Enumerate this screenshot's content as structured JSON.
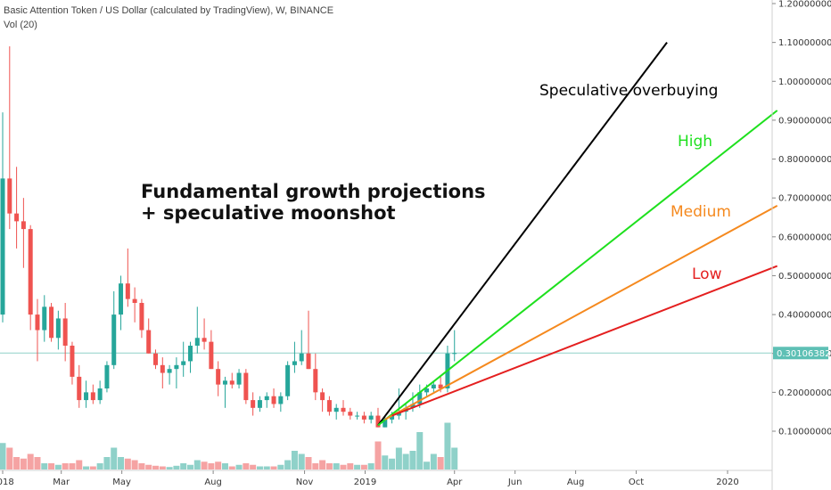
{
  "header": {
    "symbol_title": "Basic Attention Token / US Dollar (calculated by TradingView), W, BINANCE",
    "volume_label": "Vol (20)"
  },
  "colors": {
    "up": "#26a69a",
    "down": "#ef5350",
    "up_volume": "#8fd1c9",
    "down_volume": "#f5a3a3",
    "speculative": "#000000",
    "high": "#1ee01e",
    "medium": "#f5891e",
    "low": "#e41f1f",
    "price_line": "#8fd1c9"
  },
  "chart_data": {
    "type": "candlestick",
    "y_axis": {
      "min": 0.0,
      "max": 1.2,
      "ticks": [
        {
          "value": 1.2,
          "label": "1.20000000"
        },
        {
          "value": 1.1,
          "label": "1.10000000"
        },
        {
          "value": 1.0,
          "label": "1.00000000"
        },
        {
          "value": 0.9,
          "label": "0.90000000"
        },
        {
          "value": 0.8,
          "label": "0.80000000"
        },
        {
          "value": 0.7,
          "label": "0.70000000"
        },
        {
          "value": 0.6,
          "label": "0.60000000"
        },
        {
          "value": 0.5,
          "label": "0.50000000"
        },
        {
          "value": 0.4,
          "label": "0.40000000"
        },
        {
          "value": 0.3,
          "label": "0.30000000"
        },
        {
          "value": 0.2,
          "label": "0.20000000"
        },
        {
          "value": 0.1,
          "label": "0.10000000"
        }
      ]
    },
    "x_axis": {
      "start": "2018-01-01",
      "end": "2020-03-01",
      "ticks": [
        {
          "date": "2018-01-01",
          "label": "2018"
        },
        {
          "date": "2018-03-01",
          "label": "Mar"
        },
        {
          "date": "2018-05-01",
          "label": "May"
        },
        {
          "date": "2018-08-01",
          "label": "Aug"
        },
        {
          "date": "2018-11-01",
          "label": "Nov"
        },
        {
          "date": "2019-01-01",
          "label": "2019"
        },
        {
          "date": "2019-04-01",
          "label": "Apr"
        },
        {
          "date": "2019-06-01",
          "label": "Jun"
        },
        {
          "date": "2019-08-01",
          "label": "Aug"
        },
        {
          "date": "2019-10-01",
          "label": "Oct"
        },
        {
          "date": "2020-01-01",
          "label": "2020"
        }
      ]
    },
    "current_price": {
      "value": 0.30106382,
      "label": "0.30106382"
    },
    "series": [
      {
        "date": "2018-01-01",
        "o": 0.4,
        "h": 0.92,
        "l": 0.38,
        "c": 0.75,
        "v": 0.085
      },
      {
        "date": "2018-01-08",
        "o": 0.75,
        "h": 1.09,
        "l": 0.62,
        "c": 0.66,
        "v": 0.07
      },
      {
        "date": "2018-01-15",
        "o": 0.66,
        "h": 0.78,
        "l": 0.57,
        "c": 0.64,
        "v": 0.04
      },
      {
        "date": "2018-01-22",
        "o": 0.64,
        "h": 0.7,
        "l": 0.52,
        "c": 0.62,
        "v": 0.035
      },
      {
        "date": "2018-01-29",
        "o": 0.62,
        "h": 0.63,
        "l": 0.36,
        "c": 0.4,
        "v": 0.05
      },
      {
        "date": "2018-02-05",
        "o": 0.4,
        "h": 0.44,
        "l": 0.28,
        "c": 0.36,
        "v": 0.04
      },
      {
        "date": "2018-02-12",
        "o": 0.36,
        "h": 0.45,
        "l": 0.33,
        "c": 0.42,
        "v": 0.02
      },
      {
        "date": "2018-02-19",
        "o": 0.42,
        "h": 0.43,
        "l": 0.33,
        "c": 0.34,
        "v": 0.02
      },
      {
        "date": "2018-02-26",
        "o": 0.34,
        "h": 0.41,
        "l": 0.31,
        "c": 0.39,
        "v": 0.015
      },
      {
        "date": "2018-03-05",
        "o": 0.39,
        "h": 0.43,
        "l": 0.28,
        "c": 0.32,
        "v": 0.02
      },
      {
        "date": "2018-03-12",
        "o": 0.32,
        "h": 0.33,
        "l": 0.22,
        "c": 0.24,
        "v": 0.02
      },
      {
        "date": "2018-03-19",
        "o": 0.24,
        "h": 0.27,
        "l": 0.16,
        "c": 0.18,
        "v": 0.03
      },
      {
        "date": "2018-03-26",
        "o": 0.18,
        "h": 0.23,
        "l": 0.16,
        "c": 0.2,
        "v": 0.01
      },
      {
        "date": "2018-04-02",
        "o": 0.2,
        "h": 0.22,
        "l": 0.17,
        "c": 0.18,
        "v": 0.01
      },
      {
        "date": "2018-04-09",
        "o": 0.18,
        "h": 0.23,
        "l": 0.17,
        "c": 0.21,
        "v": 0.02
      },
      {
        "date": "2018-04-16",
        "o": 0.21,
        "h": 0.28,
        "l": 0.2,
        "c": 0.27,
        "v": 0.04
      },
      {
        "date": "2018-04-23",
        "o": 0.27,
        "h": 0.46,
        "l": 0.26,
        "c": 0.4,
        "v": 0.07
      },
      {
        "date": "2018-04-30",
        "o": 0.4,
        "h": 0.5,
        "l": 0.36,
        "c": 0.48,
        "v": 0.04
      },
      {
        "date": "2018-05-07",
        "o": 0.48,
        "h": 0.57,
        "l": 0.42,
        "c": 0.44,
        "v": 0.035
      },
      {
        "date": "2018-05-14",
        "o": 0.44,
        "h": 0.47,
        "l": 0.38,
        "c": 0.43,
        "v": 0.03
      },
      {
        "date": "2018-05-21",
        "o": 0.43,
        "h": 0.44,
        "l": 0.34,
        "c": 0.36,
        "v": 0.02
      },
      {
        "date": "2018-05-28",
        "o": 0.36,
        "h": 0.39,
        "l": 0.3,
        "c": 0.3,
        "v": 0.015
      },
      {
        "date": "2018-06-04",
        "o": 0.3,
        "h": 0.31,
        "l": 0.26,
        "c": 0.27,
        "v": 0.012
      },
      {
        "date": "2018-06-11",
        "o": 0.27,
        "h": 0.29,
        "l": 0.21,
        "c": 0.25,
        "v": 0.01
      },
      {
        "date": "2018-06-18",
        "o": 0.25,
        "h": 0.27,
        "l": 0.22,
        "c": 0.26,
        "v": 0.008
      },
      {
        "date": "2018-06-25",
        "o": 0.26,
        "h": 0.29,
        "l": 0.21,
        "c": 0.27,
        "v": 0.012
      },
      {
        "date": "2018-07-02",
        "o": 0.27,
        "h": 0.33,
        "l": 0.24,
        "c": 0.28,
        "v": 0.02
      },
      {
        "date": "2018-07-09",
        "o": 0.28,
        "h": 0.33,
        "l": 0.25,
        "c": 0.32,
        "v": 0.015
      },
      {
        "date": "2018-07-16",
        "o": 0.32,
        "h": 0.42,
        "l": 0.3,
        "c": 0.34,
        "v": 0.03
      },
      {
        "date": "2018-07-23",
        "o": 0.34,
        "h": 0.39,
        "l": 0.31,
        "c": 0.33,
        "v": 0.025
      },
      {
        "date": "2018-07-30",
        "o": 0.33,
        "h": 0.36,
        "l": 0.26,
        "c": 0.26,
        "v": 0.02
      },
      {
        "date": "2018-08-06",
        "o": 0.26,
        "h": 0.28,
        "l": 0.19,
        "c": 0.22,
        "v": 0.025
      },
      {
        "date": "2018-08-13",
        "o": 0.22,
        "h": 0.24,
        "l": 0.16,
        "c": 0.23,
        "v": 0.02
      },
      {
        "date": "2018-08-20",
        "o": 0.23,
        "h": 0.25,
        "l": 0.21,
        "c": 0.22,
        "v": 0.01
      },
      {
        "date": "2018-08-27",
        "o": 0.22,
        "h": 0.26,
        "l": 0.21,
        "c": 0.25,
        "v": 0.015
      },
      {
        "date": "2018-09-03",
        "o": 0.25,
        "h": 0.26,
        "l": 0.17,
        "c": 0.18,
        "v": 0.02
      },
      {
        "date": "2018-09-10",
        "o": 0.18,
        "h": 0.2,
        "l": 0.14,
        "c": 0.16,
        "v": 0.015
      },
      {
        "date": "2018-09-17",
        "o": 0.16,
        "h": 0.19,
        "l": 0.15,
        "c": 0.18,
        "v": 0.01
      },
      {
        "date": "2018-09-24",
        "o": 0.18,
        "h": 0.2,
        "l": 0.16,
        "c": 0.19,
        "v": 0.01
      },
      {
        "date": "2018-10-01",
        "o": 0.19,
        "h": 0.21,
        "l": 0.16,
        "c": 0.17,
        "v": 0.01
      },
      {
        "date": "2018-10-08",
        "o": 0.17,
        "h": 0.2,
        "l": 0.15,
        "c": 0.19,
        "v": 0.015
      },
      {
        "date": "2018-10-15",
        "o": 0.19,
        "h": 0.28,
        "l": 0.18,
        "c": 0.27,
        "v": 0.03
      },
      {
        "date": "2018-10-22",
        "o": 0.27,
        "h": 0.33,
        "l": 0.25,
        "c": 0.28,
        "v": 0.06
      },
      {
        "date": "2018-10-29",
        "o": 0.28,
        "h": 0.36,
        "l": 0.27,
        "c": 0.3,
        "v": 0.05
      },
      {
        "date": "2018-11-05",
        "o": 0.3,
        "h": 0.41,
        "l": 0.26,
        "c": 0.26,
        "v": 0.04
      },
      {
        "date": "2018-11-12",
        "o": 0.26,
        "h": 0.3,
        "l": 0.18,
        "c": 0.2,
        "v": 0.02
      },
      {
        "date": "2018-11-19",
        "o": 0.2,
        "h": 0.21,
        "l": 0.15,
        "c": 0.18,
        "v": 0.03
      },
      {
        "date": "2018-11-26",
        "o": 0.18,
        "h": 0.19,
        "l": 0.14,
        "c": 0.15,
        "v": 0.02
      },
      {
        "date": "2018-12-03",
        "o": 0.15,
        "h": 0.17,
        "l": 0.13,
        "c": 0.16,
        "v": 0.02
      },
      {
        "date": "2018-12-10",
        "o": 0.16,
        "h": 0.18,
        "l": 0.14,
        "c": 0.15,
        "v": 0.015
      },
      {
        "date": "2018-12-17",
        "o": 0.15,
        "h": 0.16,
        "l": 0.13,
        "c": 0.14,
        "v": 0.02
      },
      {
        "date": "2018-12-24",
        "o": 0.14,
        "h": 0.15,
        "l": 0.13,
        "c": 0.14,
        "v": 0.015
      },
      {
        "date": "2018-12-31",
        "o": 0.14,
        "h": 0.15,
        "l": 0.12,
        "c": 0.13,
        "v": 0.015
      },
      {
        "date": "2019-01-07",
        "o": 0.13,
        "h": 0.15,
        "l": 0.12,
        "c": 0.14,
        "v": 0.02
      },
      {
        "date": "2019-01-14",
        "o": 0.14,
        "h": 0.16,
        "l": 0.11,
        "c": 0.11,
        "v": 0.09
      },
      {
        "date": "2019-01-21",
        "o": 0.11,
        "h": 0.14,
        "l": 0.11,
        "c": 0.13,
        "v": 0.045
      },
      {
        "date": "2019-01-28",
        "o": 0.13,
        "h": 0.15,
        "l": 0.12,
        "c": 0.14,
        "v": 0.035
      },
      {
        "date": "2019-02-04",
        "o": 0.14,
        "h": 0.21,
        "l": 0.13,
        "c": 0.15,
        "v": 0.07
      },
      {
        "date": "2019-02-11",
        "o": 0.15,
        "h": 0.17,
        "l": 0.13,
        "c": 0.16,
        "v": 0.05
      },
      {
        "date": "2019-02-18",
        "o": 0.16,
        "h": 0.2,
        "l": 0.15,
        "c": 0.17,
        "v": 0.06
      },
      {
        "date": "2019-02-25",
        "o": 0.17,
        "h": 0.22,
        "l": 0.16,
        "c": 0.2,
        "v": 0.12
      },
      {
        "date": "2019-03-04",
        "o": 0.2,
        "h": 0.22,
        "l": 0.19,
        "c": 0.21,
        "v": 0.025
      },
      {
        "date": "2019-03-11",
        "o": 0.21,
        "h": 0.23,
        "l": 0.2,
        "c": 0.22,
        "v": 0.05
      },
      {
        "date": "2019-03-18",
        "o": 0.22,
        "h": 0.24,
        "l": 0.2,
        "c": 0.21,
        "v": 0.04
      },
      {
        "date": "2019-03-25",
        "o": 0.21,
        "h": 0.32,
        "l": 0.2,
        "c": 0.3,
        "v": 0.15
      },
      {
        "date": "2019-04-01",
        "o": 0.3,
        "h": 0.36,
        "l": 0.28,
        "c": 0.301,
        "v": 0.07
      }
    ],
    "projection_lines": [
      {
        "label": "Speculative    overbuying",
        "color_key": "speculative",
        "start": {
          "date": "2019-01-14",
          "value": 0.115
        },
        "end": {
          "date": "2019-11-01",
          "value": 1.1
        }
      },
      {
        "label": "High",
        "color_key": "high",
        "start": {
          "date": "2019-01-14",
          "value": 0.115
        },
        "end": {
          "date": "2020-02-20",
          "value": 0.925
        }
      },
      {
        "label": "Medium",
        "color_key": "medium",
        "start": {
          "date": "2019-01-21",
          "value": 0.13
        },
        "end": {
          "date": "2020-02-20",
          "value": 0.68
        }
      },
      {
        "label": "Low",
        "color_key": "low",
        "start": {
          "date": "2019-01-28",
          "value": 0.14
        },
        "end": {
          "date": "2020-02-20",
          "value": 0.525
        }
      }
    ],
    "annotation_main": {
      "line1": "Fundamental growth projections",
      "line2": "+ speculative moonshot"
    }
  }
}
